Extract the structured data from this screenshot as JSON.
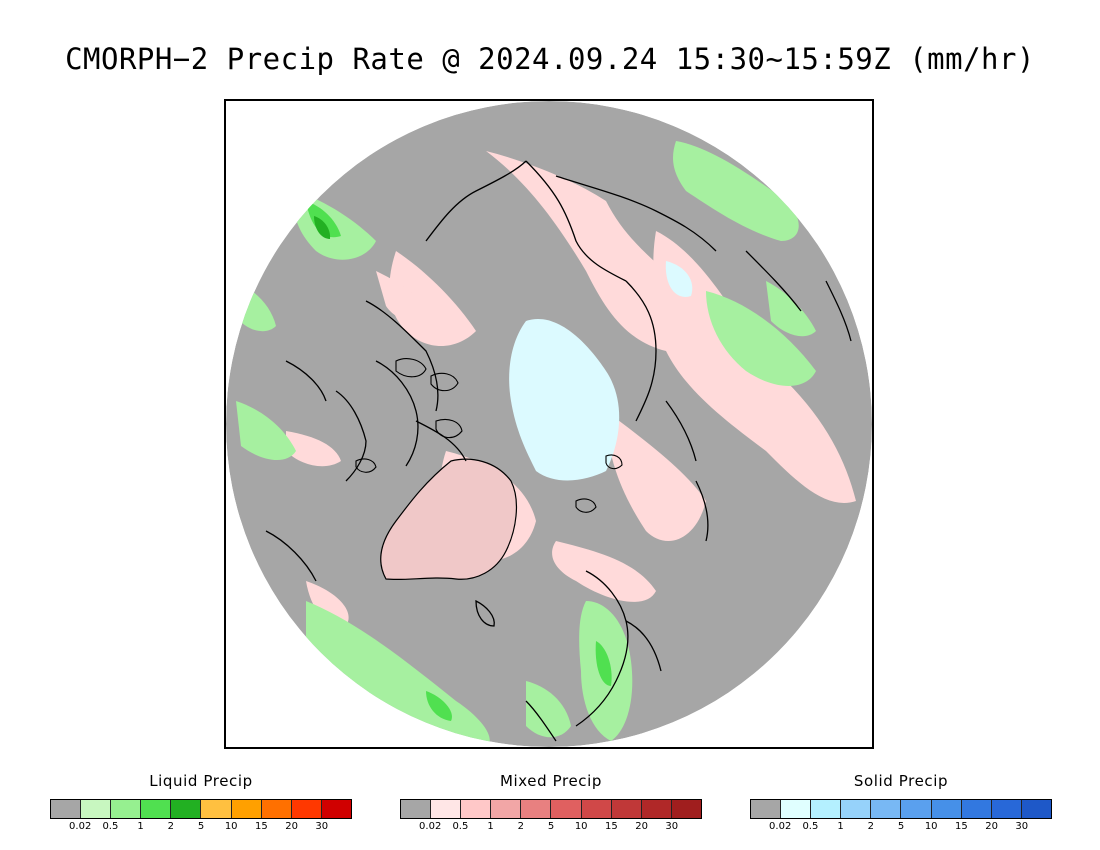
{
  "title": "CMORPH−2 Precip Rate @ 2024.09.24 15:30~15:59Z (mm/hr)",
  "legends": [
    {
      "title": "Liquid Precip",
      "colors": [
        "#a6a6a6",
        "#c8f7c0",
        "#96f090",
        "#50e050",
        "#22b022",
        "#ffc040",
        "#ffa000",
        "#ff7000",
        "#ff3800",
        "#d00000"
      ],
      "ticks": [
        "0.02",
        "0.5",
        "1",
        "2",
        "5",
        "10",
        "15",
        "20",
        "30"
      ]
    },
    {
      "title": "Mixed Precip",
      "colors": [
        "#a6a6a6",
        "#ffe6e6",
        "#ffc8c8",
        "#f2a6a6",
        "#e88080",
        "#e06060",
        "#d04848",
        "#c03838",
        "#b02828",
        "#a01e1e"
      ],
      "ticks": [
        "0.02",
        "0.5",
        "1",
        "2",
        "5",
        "10",
        "15",
        "20",
        "30"
      ]
    },
    {
      "title": "Solid Precip",
      "colors": [
        "#a6a6a6",
        "#e0ffff",
        "#b4f0ff",
        "#96d2fa",
        "#78b8f4",
        "#5aa0ee",
        "#4690e8",
        "#3278e0",
        "#2868d8",
        "#1e58c8"
      ],
      "ticks": [
        "0.02",
        "0.5",
        "1",
        "2",
        "5",
        "10",
        "15",
        "20",
        "30"
      ]
    }
  ],
  "map_colors": {
    "no_precip": "#a6a6a6",
    "light_rain": "#a6f0a0",
    "moderate_rain": "#50e050",
    "heavy_rain": "#22b022",
    "light_mixed": "#ffdada",
    "light_snow": "#dcfaff",
    "coastline": "#000000"
  }
}
